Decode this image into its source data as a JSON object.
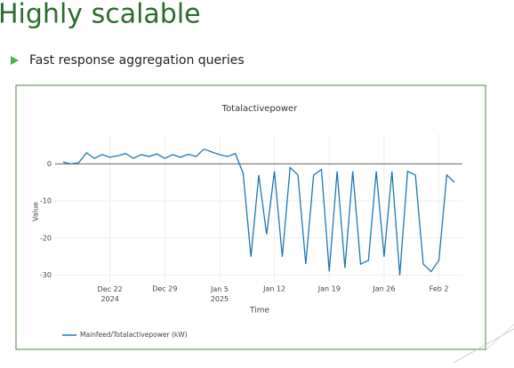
{
  "slide": {
    "title": "Highly scalable",
    "bullet": "Fast response aggregation queries"
  },
  "chart_data": {
    "type": "line",
    "title": "Totalactivepower",
    "xlabel": "Time",
    "ylabel": "Value",
    "zeroline": true,
    "x": [
      "2024-12-16",
      "2024-12-17",
      "2024-12-18",
      "2024-12-19",
      "2024-12-20",
      "2024-12-21",
      "2024-12-22",
      "2024-12-23",
      "2024-12-24",
      "2024-12-25",
      "2024-12-26",
      "2024-12-27",
      "2024-12-28",
      "2024-12-29",
      "2024-12-30",
      "2024-12-31",
      "2025-01-01",
      "2025-01-02",
      "2025-01-03",
      "2025-01-04",
      "2025-01-05",
      "2025-01-06",
      "2025-01-07",
      "2025-01-08",
      "2025-01-09",
      "2025-01-10",
      "2025-01-11",
      "2025-01-12",
      "2025-01-13",
      "2025-01-14",
      "2025-01-15",
      "2025-01-16",
      "2025-01-17",
      "2025-01-18",
      "2025-01-19",
      "2025-01-20",
      "2025-01-21",
      "2025-01-22",
      "2025-01-23",
      "2025-01-24",
      "2025-01-25",
      "2025-01-26",
      "2025-01-27",
      "2025-01-28",
      "2025-01-29",
      "2025-01-30",
      "2025-01-31",
      "2025-02-01",
      "2025-02-02",
      "2025-02-03",
      "2025-02-04"
    ],
    "series": [
      {
        "name": "Mainfeed/Totalactivepower (kW)",
        "color": "#1f77b4",
        "values": [
          0.5,
          0,
          0.3,
          3,
          1.5,
          2.5,
          1.8,
          2.2,
          2.8,
          1.5,
          2.5,
          2.0,
          2.7,
          1.5,
          2.5,
          1.8,
          2.6,
          2.0,
          4.0,
          3.2,
          2.5,
          2.0,
          2.8,
          -2.5,
          -25,
          -3,
          -19,
          -2,
          -25,
          -1,
          -3,
          -27,
          -3,
          -1.5,
          -29,
          -2,
          -28,
          -2,
          -27,
          -26,
          -2,
          -25,
          -2,
          -30,
          -2,
          -3,
          -27,
          -29,
          -26,
          -3,
          -5
        ]
      }
    ],
    "xlim": [
      "2024-12-15",
      "2025-02-05"
    ],
    "xticks": [
      {
        "value": "2024-12-22",
        "label": "Dec 22\n2024"
      },
      {
        "value": "2024-12-29",
        "label": "Dec 29"
      },
      {
        "value": "2025-01-05",
        "label": "Jan 5\n2025"
      },
      {
        "value": "2025-01-12",
        "label": "Jan 12"
      },
      {
        "value": "2025-01-19",
        "label": "Jan 19"
      },
      {
        "value": "2025-01-26",
        "label": "Jan 26"
      },
      {
        "value": "2025-02-02",
        "label": "Feb 2"
      }
    ],
    "ylim": [
      -32,
      8
    ],
    "yticks": [
      0,
      -10,
      -20,
      -30
    ],
    "grid": true
  }
}
